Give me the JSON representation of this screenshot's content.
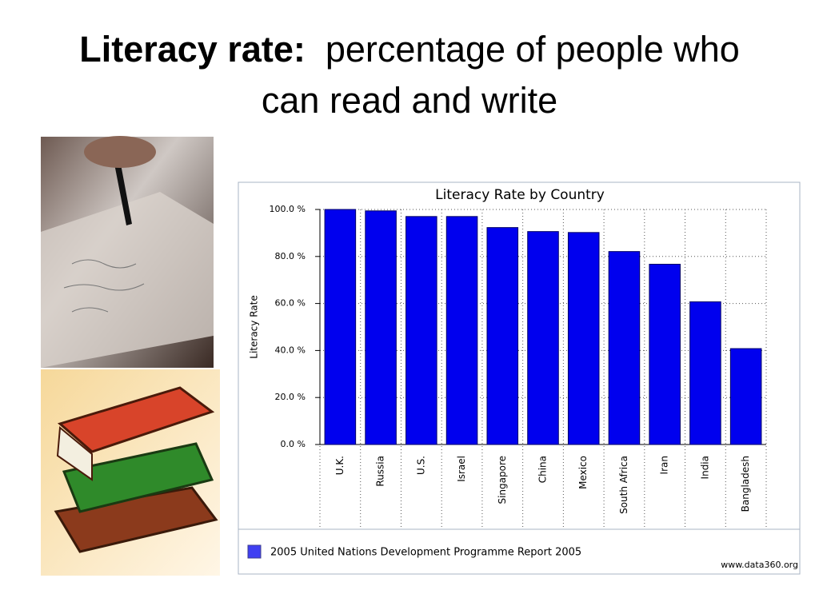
{
  "slide": {
    "title_bold": "Literacy rate:",
    "title": "percentage of people who can read and write"
  },
  "chart_data": {
    "type": "bar",
    "title": "Literacy Rate by Country",
    "y_label": "Literacy Rate",
    "categories": [
      "U.K.",
      "Russia",
      "U.S.",
      "Israel",
      "Singapore",
      "China",
      "Mexico",
      "South Africa",
      "Iran",
      "India",
      "Bangladesh"
    ],
    "series": [
      {
        "name": "2005 United Nations Development Programme Report 2005",
        "color": "#0000ee",
        "values": [
          100,
          99.4,
          97,
          97,
          92.3,
          90.6,
          90.2,
          82.1,
          76.7,
          60.7,
          40.8
        ]
      }
    ],
    "ylim": [
      0,
      100
    ],
    "yticks": [
      {
        "value": 0,
        "label": "0.0 %"
      },
      {
        "value": 20,
        "label": "20.0 %"
      },
      {
        "value": 40,
        "label": "40.0 %"
      },
      {
        "value": 60,
        "label": "60.0 %"
      },
      {
        "value": 80,
        "label": "80.0 %"
      },
      {
        "value": 100,
        "label": "100.0 %"
      }
    ],
    "grid": true,
    "legend": "bottom-left",
    "source": "www.data360.org"
  }
}
